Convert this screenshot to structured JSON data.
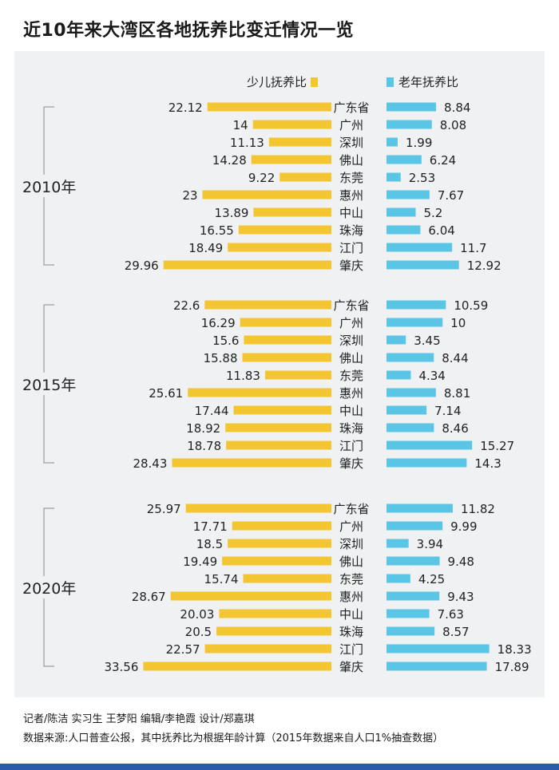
{
  "title": "近10年来大湾区各地抚养比变迁情况一览",
  "credits": "记者/陈洁   实习生 王梦阳    编辑/李艳霞    设计/郑嘉琪",
  "source": "数据来源:人口普查公报，其中抚养比为根据年龄计算（2015年数据来自人口1%抽查数据）",
  "colors": {
    "child": "#f2c531",
    "elderly": "#5bc5e6",
    "bottom_bar": "#2a5aa8"
  },
  "chart_data": {
    "type": "bar",
    "legend": {
      "child": "少儿抚养比",
      "elderly": "老年抚养比",
      "placement": "top"
    },
    "categories": [
      "广东省",
      "广州",
      "深圳",
      "佛山",
      "东莞",
      "惠州",
      "中山",
      "珠海",
      "江门",
      "肇庆"
    ],
    "groups": [
      {
        "label": "2010年",
        "child": [
          22.12,
          14,
          11.13,
          14.28,
          9.22,
          23,
          13.89,
          16.55,
          18.49,
          29.96
        ],
        "elderly": [
          8.84,
          8.08,
          1.99,
          6.24,
          2.53,
          7.67,
          5.2,
          6.04,
          11.7,
          12.92
        ],
        "child_labels": [
          "22.12",
          "14",
          "11.13",
          "14.28",
          "9.22",
          "23",
          "13.89",
          "16.55",
          "18.49",
          "29.96"
        ],
        "elderly_labels": [
          "8.84",
          "8.08",
          "1.99",
          "6.24",
          "2.53",
          "7.67",
          "5.2",
          "6.04",
          "11.7",
          "12.92"
        ]
      },
      {
        "label": "2015年",
        "child": [
          22.6,
          16.29,
          15.6,
          15.88,
          11.83,
          25.61,
          17.44,
          18.92,
          18.78,
          28.43
        ],
        "elderly": [
          10.59,
          10,
          3.45,
          8.44,
          4.34,
          8.81,
          7.14,
          8.46,
          15.27,
          14.3
        ],
        "child_labels": [
          "22.6",
          "16.29",
          "15.6",
          "15.88",
          "11.83",
          "25.61",
          "17.44",
          "18.92",
          "18.78",
          "28.43"
        ],
        "elderly_labels": [
          "10.59",
          "10",
          "3.45",
          "8.44",
          "4.34",
          "8.81",
          "7.14",
          "8.46",
          "15.27",
          "14.3"
        ]
      },
      {
        "label": "2020年",
        "child": [
          25.97,
          17.71,
          18.5,
          19.49,
          15.74,
          28.67,
          20.03,
          20.5,
          22.57,
          33.56
        ],
        "elderly": [
          11.82,
          9.99,
          3.94,
          9.48,
          4.25,
          9.43,
          7.63,
          8.57,
          18.33,
          17.89
        ],
        "child_labels": [
          "25.97",
          "17.71",
          "18.5",
          "19.49",
          "15.74",
          "28.67",
          "20.03",
          "20.5",
          "22.57",
          "33.56"
        ],
        "elderly_labels": [
          "11.82",
          "9.99",
          "3.94",
          "9.48",
          "4.25",
          "9.43",
          "7.63",
          "8.57",
          "18.33",
          "17.89"
        ]
      }
    ]
  }
}
